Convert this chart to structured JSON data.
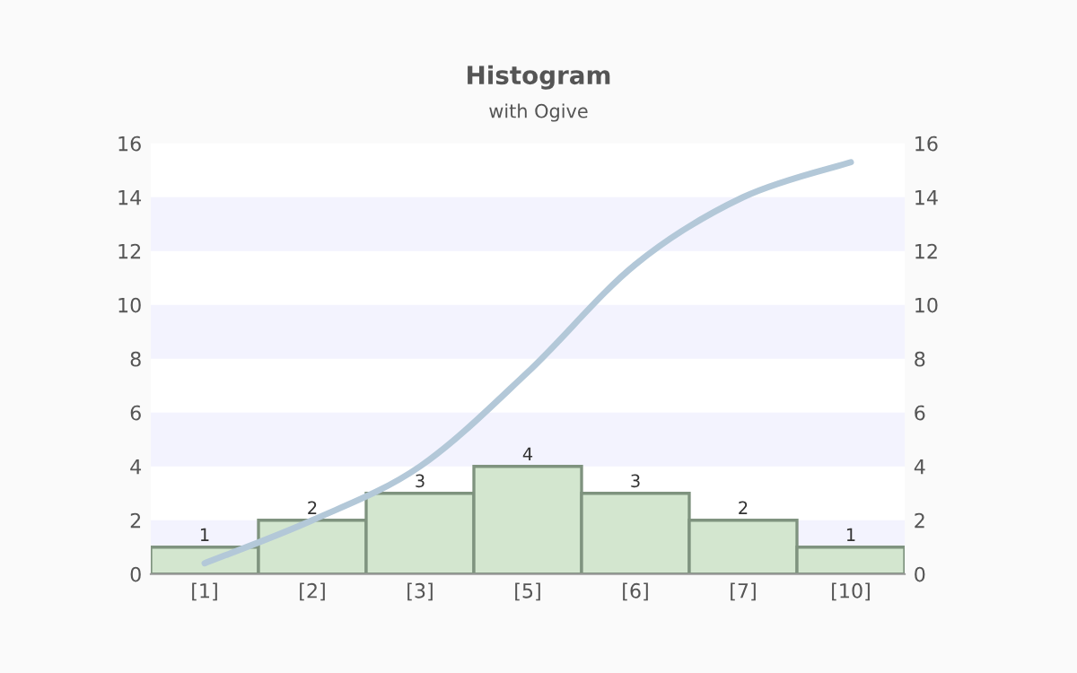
{
  "chart_data": {
    "type": "bar",
    "title": "Histogram",
    "subtitle": "with Ogive",
    "categories": [
      "[1]",
      "[2]",
      "[3]",
      "[5]",
      "[6]",
      "[7]",
      "[10]"
    ],
    "ylim": [
      0,
      16
    ],
    "yticks": [
      0,
      2,
      4,
      6,
      8,
      10,
      12,
      14,
      16
    ],
    "y2lim": [
      0,
      16
    ],
    "y2ticks": [
      0,
      2,
      4,
      6,
      8,
      10,
      12,
      14,
      16
    ],
    "bands": [
      {
        "axis": "y",
        "from": 0,
        "to": 2,
        "color": "#f3f3fe"
      },
      {
        "axis": "y",
        "from": 4,
        "to": 6,
        "color": "#f3f3fe"
      },
      {
        "axis": "y",
        "from": 8,
        "to": 10,
        "color": "#f3f3fe"
      },
      {
        "axis": "y",
        "from": 12,
        "to": 14,
        "color": "#f3f3fe"
      }
    ],
    "series": [
      {
        "color": "#d3e6cf",
        "values": [
          1,
          2,
          3,
          4,
          3,
          2,
          1
        ],
        "value_labels": [
          "1",
          "2",
          "3",
          "4",
          "3",
          "2",
          "1"
        ]
      },
      {
        "type": "line",
        "color": "#b3c8d8",
        "values": [
          0.4,
          2,
          4,
          7.5,
          11.5,
          14,
          15.3
        ]
      }
    ]
  }
}
